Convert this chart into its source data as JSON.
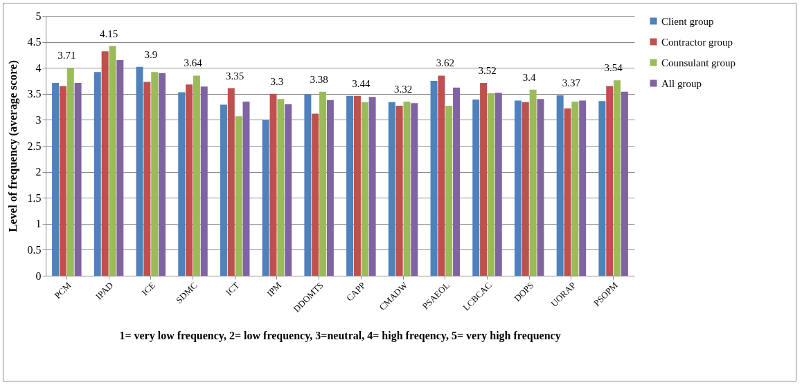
{
  "chart_data": {
    "type": "bar",
    "ylabel": "Level of frequency (average score)",
    "annotations": [
      "1= very low frequency, 2= low frequency, 3=neutral, 4= high freqency, 5= very high frequency"
    ],
    "categories": [
      "PCM",
      "IPAD",
      "ICE",
      "SDMC",
      "ICT",
      "IPM",
      "DDOMTS",
      "CAPP",
      "CMADW",
      "PSAEOL",
      "LCBCAC",
      "DOPS",
      "UORAP",
      "PSOPM"
    ],
    "series": [
      {
        "name": "Client group",
        "color": "#4f81bd",
        "values": [
          3.71,
          3.92,
          4.02,
          3.53,
          3.29,
          3.0,
          3.49,
          3.46,
          3.34,
          3.75,
          3.39,
          3.37,
          3.47,
          3.36
        ]
      },
      {
        "name": "Contractor group",
        "color": "#c0504d",
        "values": [
          3.65,
          4.32,
          3.73,
          3.68,
          3.61,
          3.5,
          3.12,
          3.46,
          3.27,
          3.85,
          3.71,
          3.34,
          3.22,
          3.65
        ]
      },
      {
        "name": "Counsulant group",
        "color": "#9bbb59",
        "values": [
          4.0,
          4.42,
          3.92,
          3.85,
          3.07,
          3.4,
          3.54,
          3.34,
          3.35,
          3.27,
          3.51,
          3.58,
          3.35,
          3.76
        ]
      },
      {
        "name": "All group",
        "color": "#8064a2",
        "values": [
          3.71,
          4.15,
          3.9,
          3.64,
          3.35,
          3.3,
          3.38,
          3.44,
          3.32,
          3.62,
          3.52,
          3.4,
          3.37,
          3.54
        ],
        "value_labels": [
          "3.71",
          "4.15",
          "3.9",
          "3.64",
          "3.35",
          "3.3",
          "3.38",
          "3.44",
          "3.32",
          "3.62",
          "3.52",
          "3.4",
          "3.37",
          "3.54"
        ]
      }
    ],
    "ylim": [
      0,
      5
    ],
    "yticks": [
      0,
      0.5,
      1,
      1.5,
      2,
      2.5,
      3,
      3.5,
      4,
      4.5,
      5
    ],
    "grid": "y",
    "legend": "right"
  }
}
